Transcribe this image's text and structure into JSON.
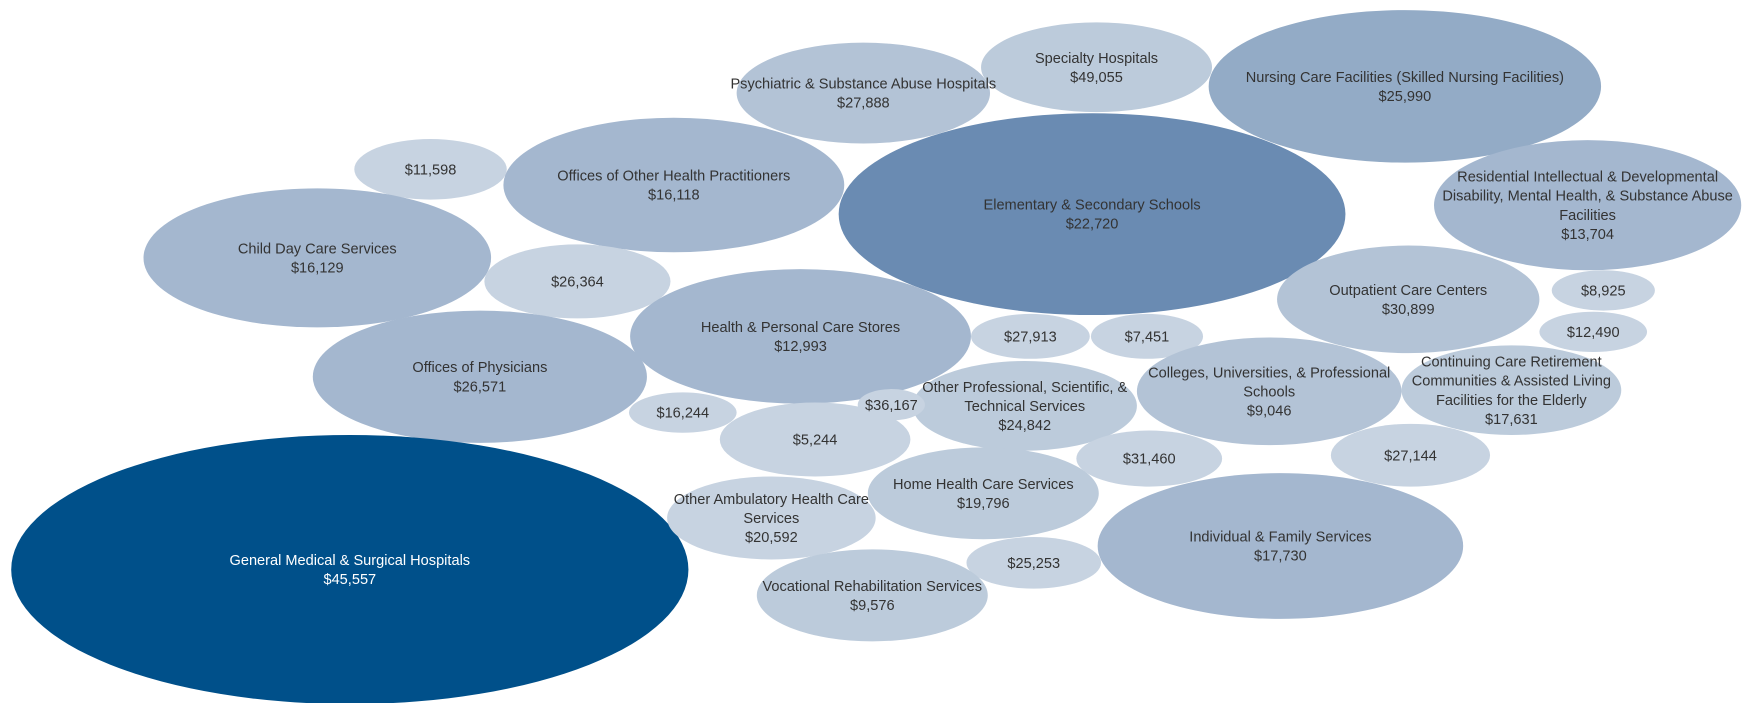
{
  "chart_data": {
    "type": "bubble",
    "categories": [
      "Psychiatric & Substance Abuse Hospitals",
      "Specialty Hospitals",
      "Nursing Care Facilities (Skilled Nursing Facilities)",
      null,
      "Offices of Other Health Practitioners",
      "Elementary & Secondary Schools",
      "Residential Intellectual & Developmental Disability, Mental Health, & Substance Abuse Facilities",
      "Child Day Care Services",
      null,
      "Outpatient Care Centers",
      null,
      null,
      "Health & Personal Care Stores",
      null,
      null,
      "Offices of Physicians",
      "Other Professional, Scientific, & Technical Services",
      "Colleges, Universities, & Professional Schools",
      "Continuing Care Retirement Communities & Assisted Living Facilities for the Elderly",
      null,
      null,
      null,
      null,
      null,
      "General Medical & Surgical Hospitals",
      "Other Ambulatory Health Care Services",
      "Home Health Care Services",
      "Individual & Family Services",
      null,
      "Vocational Rehabilitation Services"
    ],
    "values": [
      27888,
      49055,
      25990,
      11598,
      16118,
      22720,
      13704,
      16129,
      26364,
      30899,
      8925,
      12490,
      12993,
      27913,
      7451,
      26571,
      24842,
      9046,
      17631,
      16244,
      36167,
      5244,
      31460,
      27144,
      45557,
      20592,
      19796,
      17730,
      25253,
      9576
    ],
    "value_labels": [
      "$27,888",
      "$49,055",
      "$25,990",
      "$11,598",
      "$16,118",
      "$22,720",
      "$13,704",
      "$16,129",
      "$26,364",
      "$30,899",
      "$8,925",
      "$12,490",
      "$12,993",
      "$27,913",
      "$7,451",
      "$26,571",
      "$24,842",
      "$9,046",
      "$17,631",
      "$16,244",
      "$36,167",
      "$5,244",
      "$31,460",
      "$27,144",
      "$45,557",
      "$20,592",
      "$19,796",
      "$17,730",
      "$25,253",
      "$9,576"
    ]
  }
}
